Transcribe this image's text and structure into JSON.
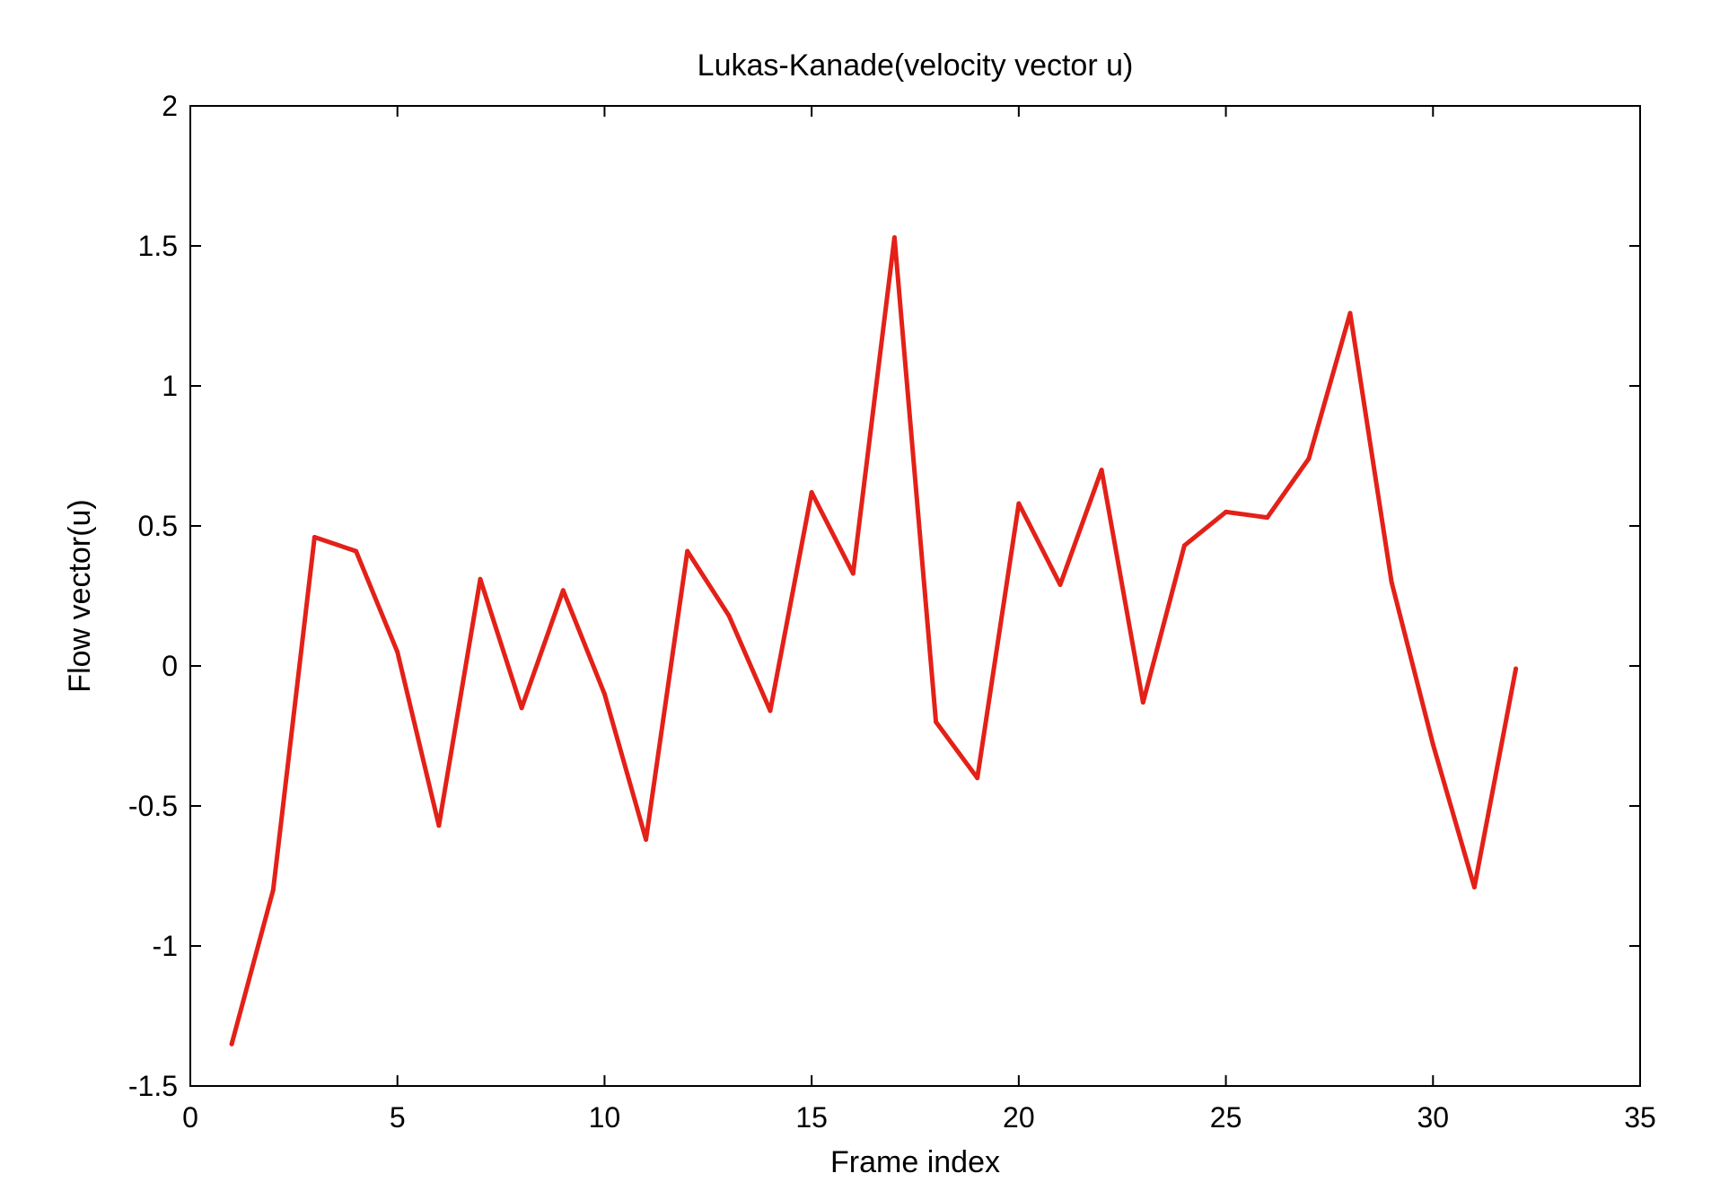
{
  "chart_data": {
    "type": "line",
    "title": "Lukas-Kanade(velocity vector u)",
    "xlabel": "Frame index",
    "ylabel": "Flow vector(u)",
    "xlim": [
      0,
      35
    ],
    "ylim": [
      -1.5,
      2
    ],
    "xticks": [
      0,
      5,
      10,
      15,
      20,
      25,
      30,
      35
    ],
    "yticks": [
      -1.5,
      -1,
      -0.5,
      0,
      0.5,
      1,
      1.5,
      2
    ],
    "xtick_labels": [
      "0",
      "5",
      "10",
      "15",
      "20",
      "25",
      "30",
      "35"
    ],
    "ytick_labels": [
      "-1.5",
      "-1",
      "-0.5",
      "0",
      "0.5",
      "1",
      "1.5",
      "2"
    ],
    "grid": false,
    "series": [
      {
        "color": "#e32118",
        "x": [
          1,
          2,
          3,
          4,
          5,
          6,
          7,
          8,
          9,
          10,
          11,
          12,
          13,
          14,
          15,
          16,
          17,
          18,
          19,
          20,
          21,
          22,
          23,
          24,
          25,
          26,
          27,
          28,
          29,
          30,
          31,
          32
        ],
        "y": [
          -1.35,
          -0.8,
          0.46,
          0.41,
          0.05,
          -0.57,
          0.31,
          -0.15,
          0.27,
          -0.1,
          -0.62,
          0.41,
          0.18,
          -0.16,
          0.62,
          0.33,
          1.53,
          -0.2,
          -0.4,
          0.58,
          0.29,
          0.7,
          -0.13,
          0.43,
          0.55,
          0.53,
          0.74,
          1.26,
          0.3,
          -0.28,
          -0.79,
          -0.01
        ]
      }
    ]
  }
}
